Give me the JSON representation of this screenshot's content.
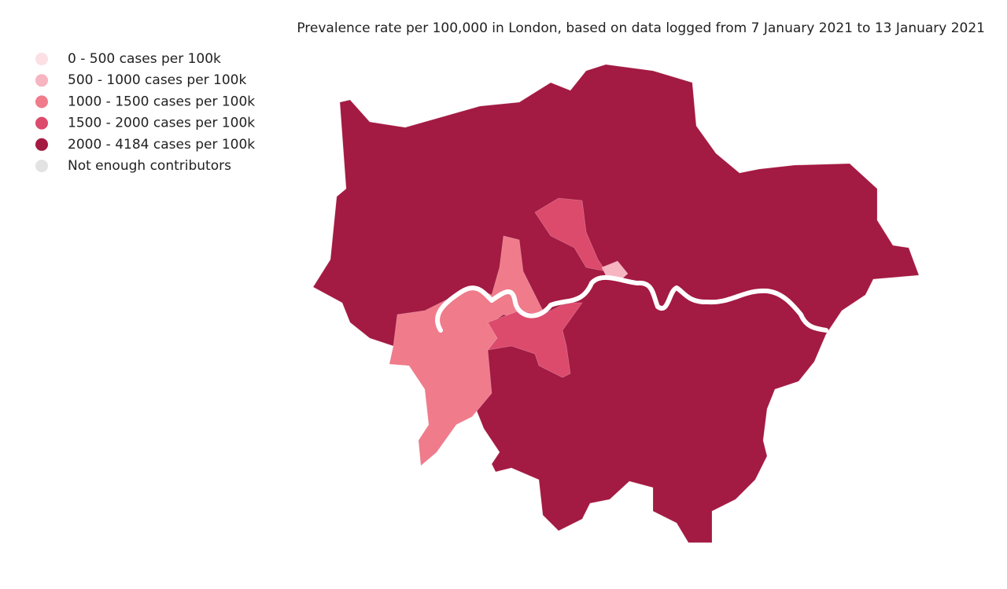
{
  "title": "Prevalence rate per 100,000 in London, based on data logged from 7 January 2021 to 13 January 2021",
  "legend": [
    {
      "label": "0 - 500 cases per 100k",
      "color": "#fbe0e4"
    },
    {
      "label": "500 - 1000 cases per 100k",
      "color": "#f7b4c1"
    },
    {
      "label": "1000 - 1500 cases per 100k",
      "color": "#ef7b8b"
    },
    {
      "label": "1500 - 2000 cases per 100k",
      "color": "#dc4a6c"
    },
    {
      "label": "2000 - 4184 cases per 100k",
      "color": "#a31a42"
    },
    {
      "label": "Not enough contributors",
      "color": "#e3e3e3"
    }
  ]
}
